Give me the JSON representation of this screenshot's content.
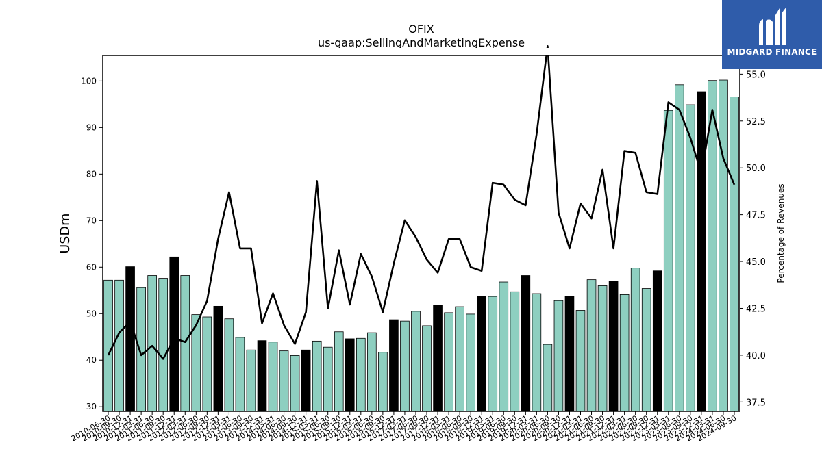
{
  "logo": {
    "text": "MIDGARD FINANCE"
  },
  "colors": {
    "bar": "#8ecfc0",
    "bar_highlight": "#000000",
    "line": "#000000",
    "logo_bg": "#2f5caa"
  },
  "chart_data": {
    "type": "bar",
    "title": "OFIX",
    "subtitle": "us-gaap:SellingAndMarketingExpense",
    "ylabel": "USDm",
    "ylabel_right": "Percentage of Revenues",
    "ylim": [
      29,
      105.5
    ],
    "ylim_right": [
      37.0,
      56.0
    ],
    "yticks": [
      30,
      40,
      50,
      60,
      70,
      80,
      90,
      100
    ],
    "yticks_right": [
      37.5,
      40.0,
      42.5,
      45.0,
      47.5,
      50.0,
      52.5,
      55.0
    ],
    "yticks_right_labels": [
      "37.5",
      "40.0",
      "42.5",
      "45.0",
      "47.5",
      "50.0",
      "52.5",
      "55.0"
    ],
    "categories": [
      "2010-06-30",
      "2010-09-30",
      "2010-12-31",
      "2011-03-31",
      "2011-06-30",
      "2011-09-30",
      "2011-12-31",
      "2012-03-31",
      "2012-06-30",
      "2012-09-30",
      "2012-12-31",
      "2013-03-31",
      "2013-06-30",
      "2013-09-30",
      "2013-12-31",
      "2014-03-31",
      "2014-06-30",
      "2014-09-30",
      "2014-12-31",
      "2015-03-31",
      "2015-06-30",
      "2015-09-30",
      "2015-12-31",
      "2016-03-31",
      "2016-06-30",
      "2016-09-30",
      "2016-12-31",
      "2017-03-31",
      "2017-06-30",
      "2017-09-30",
      "2017-12-31",
      "2018-03-31",
      "2018-06-30",
      "2018-09-30",
      "2018-12-31",
      "2019-03-31",
      "2019-06-30",
      "2019-09-30",
      "2019-12-31",
      "2020-03-31",
      "2020-06-30",
      "2020-09-30",
      "2020-12-31",
      "2021-03-31",
      "2021-06-30",
      "2021-09-30",
      "2021-12-31",
      "2022-03-31",
      "2022-06-30",
      "2022-09-30",
      "2022-12-31",
      "2023-03-31",
      "2023-06-30",
      "2023-09-30",
      "2023-12-31",
      "2024-03-31",
      "2024-06-30",
      "2024-09-30"
    ],
    "series": [
      {
        "type": "bar",
        "values": [
          57.2,
          57.2,
          60.1,
          55.6,
          58.2,
          57.6,
          62.2,
          58.2,
          49.8,
          49.3,
          51.6,
          48.9,
          44.9,
          42.2,
          44.2,
          43.9,
          42.0,
          41.0,
          42.2,
          44.1,
          42.8,
          46.1,
          44.6,
          44.7,
          45.9,
          41.7,
          48.7,
          48.4,
          50.5,
          47.4,
          51.8,
          50.2,
          51.5,
          49.9,
          53.8,
          53.7,
          56.8,
          54.7,
          58.2,
          54.3,
          43.4,
          52.8,
          53.7,
          50.7,
          57.3,
          56.0,
          57.0,
          54.1,
          59.8,
          55.4,
          59.2,
          93.7,
          99.2,
          94.9,
          97.7,
          100.1,
          100.2,
          96.6
        ],
        "highlight": [
          false,
          false,
          true,
          false,
          false,
          false,
          true,
          false,
          false,
          false,
          true,
          false,
          false,
          false,
          true,
          false,
          false,
          false,
          true,
          false,
          false,
          false,
          true,
          false,
          false,
          false,
          true,
          false,
          false,
          false,
          true,
          false,
          false,
          false,
          true,
          false,
          false,
          false,
          true,
          false,
          false,
          false,
          true,
          false,
          false,
          false,
          true,
          false,
          false,
          false,
          true,
          false,
          false,
          false,
          true,
          false,
          false,
          false
        ]
      },
      {
        "type": "line",
        "axis": "right",
        "values": [
          40.0,
          41.2,
          41.8,
          40.0,
          40.5,
          39.8,
          40.9,
          40.7,
          41.6,
          42.9,
          46.2,
          48.7,
          45.7,
          45.7,
          41.7,
          43.3,
          41.6,
          40.6,
          42.3,
          49.3,
          42.5,
          45.6,
          42.7,
          45.4,
          44.2,
          42.3,
          44.9,
          47.2,
          46.3,
          45.1,
          44.4,
          46.2,
          46.2,
          44.7,
          44.5,
          49.2,
          49.1,
          48.3,
          48.0,
          51.8,
          56.5,
          47.6,
          45.7,
          48.1,
          47.3,
          49.9,
          45.7,
          50.9,
          50.8,
          48.7,
          48.6,
          53.5,
          53.1,
          51.6,
          49.7,
          53.1,
          50.5,
          49.1
        ]
      }
    ]
  }
}
